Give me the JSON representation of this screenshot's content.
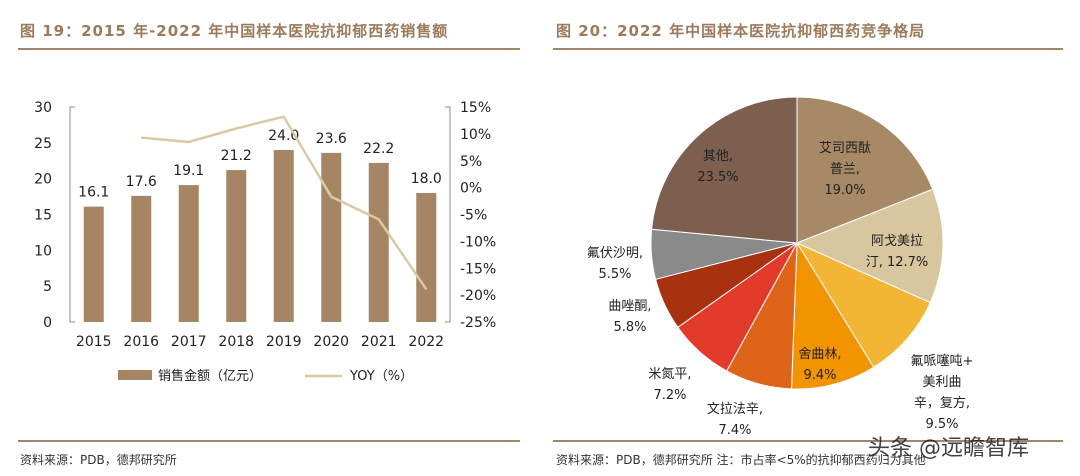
{
  "chart_data": [
    {
      "type": "bar+line",
      "title": "图 19：2015 年-2022 年中国样本医院抗抑郁西药销售额",
      "categories": [
        "2015",
        "2016",
        "2017",
        "2018",
        "2019",
        "2020",
        "2021",
        "2022"
      ],
      "series": [
        {
          "name": "销售金额（亿元）",
          "type": "bar",
          "axis": "left",
          "values": [
            16.1,
            17.6,
            19.1,
            21.2,
            24.0,
            23.6,
            22.2,
            18.0
          ],
          "color": "#a58563"
        },
        {
          "name": "YOY（%）",
          "type": "line",
          "axis": "right",
          "values": [
            null,
            9.3,
            8.5,
            11.0,
            13.2,
            -1.7,
            -5.9,
            -18.9
          ],
          "color": "#d9c9a6"
        }
      ],
      "ylim_left": [
        0,
        30
      ],
      "yticks_left": [
        "0",
        "5",
        "10",
        "15",
        "20",
        "25",
        "30"
      ],
      "ylim_right": [
        -25,
        15
      ],
      "yticks_right": [
        "-25%",
        "-20%",
        "-15%",
        "-10%",
        "-5%",
        "0%",
        "5%",
        "10%",
        "15%"
      ],
      "legend": "bottom",
      "grid": false,
      "source": "资料来源：PDB，德邦研究所"
    },
    {
      "type": "pie",
      "title": "图 20：2022 年中国样本医院抗抑郁西药竞争格局",
      "slices": [
        {
          "label": "艾司西酞普兰",
          "value": 19.0,
          "text": [
            "艾司西酞",
            "普兰,",
            "19.0%"
          ],
          "color": "#a88966"
        },
        {
          "label": "阿戈美拉汀",
          "value": 12.7,
          "text": [
            "阿戈美拉",
            "汀, 12.7%"
          ],
          "color": "#d8c69e"
        },
        {
          "label": "氟哌噻吨+美利曲辛，复方",
          "value": 9.5,
          "text": [
            "氟哌噻吨+",
            "美利曲",
            "辛，复方,",
            "9.5%"
          ],
          "color": "#f2b634"
        },
        {
          "label": "舍曲林",
          "value": 9.4,
          "text": [
            "舍曲林,",
            "9.4%"
          ],
          "color": "#f29400"
        },
        {
          "label": "文拉法辛",
          "value": 7.4,
          "text": [
            "文拉法辛,",
            "7.4%"
          ],
          "color": "#dd6418"
        },
        {
          "label": "米氮平",
          "value": 7.2,
          "text": [
            "米氮平,",
            "7.2%"
          ],
          "color": "#e23b2b"
        },
        {
          "label": "曲唑酮",
          "value": 5.8,
          "text": [
            "曲唑酮,",
            "5.8%"
          ],
          "color": "#a8320f"
        },
        {
          "label": "氟伏沙明",
          "value": 5.5,
          "text": [
            "氟伏沙明,",
            "5.5%"
          ],
          "color": "#8a8a8a"
        },
        {
          "label": "其他",
          "value": 23.5,
          "text": [
            "其他,",
            "23.5%"
          ],
          "color": "#7d5f50"
        }
      ],
      "source": "资料来源：PDB，德邦研究所 注：市占率<5%的抗抑郁西药归为其他"
    }
  ],
  "watermark": "头条 @远瞻智库"
}
